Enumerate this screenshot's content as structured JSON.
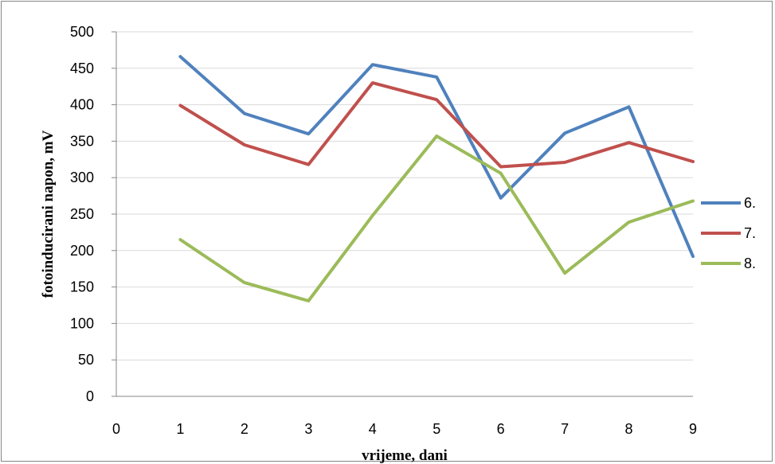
{
  "chart_data": {
    "type": "line",
    "title": "",
    "xlabel": "vrijeme, dani",
    "ylabel": "fotoinducirani napon, mV",
    "xlim": [
      0,
      9
    ],
    "ylim": [
      0,
      500
    ],
    "x_ticks": [
      0,
      1,
      2,
      3,
      4,
      5,
      6,
      7,
      8,
      9
    ],
    "y_ticks": [
      0,
      50,
      100,
      150,
      200,
      250,
      300,
      350,
      400,
      450,
      500
    ],
    "grid": "horizontal",
    "legend_position": "right",
    "x": [
      1,
      2,
      3,
      4,
      5,
      6,
      7,
      8,
      9
    ],
    "series": [
      {
        "name": "6.",
        "color": "#4F81BD",
        "values": [
          466,
          388,
          360,
          455,
          438,
          272,
          361,
          397,
          192
        ]
      },
      {
        "name": "7.",
        "color": "#C0504D",
        "values": [
          399,
          345,
          318,
          430,
          407,
          315,
          321,
          348,
          322
        ]
      },
      {
        "name": "8.",
        "color": "#9BBB59",
        "values": [
          215,
          156,
          131,
          248,
          357,
          306,
          169,
          239,
          268
        ]
      }
    ]
  }
}
